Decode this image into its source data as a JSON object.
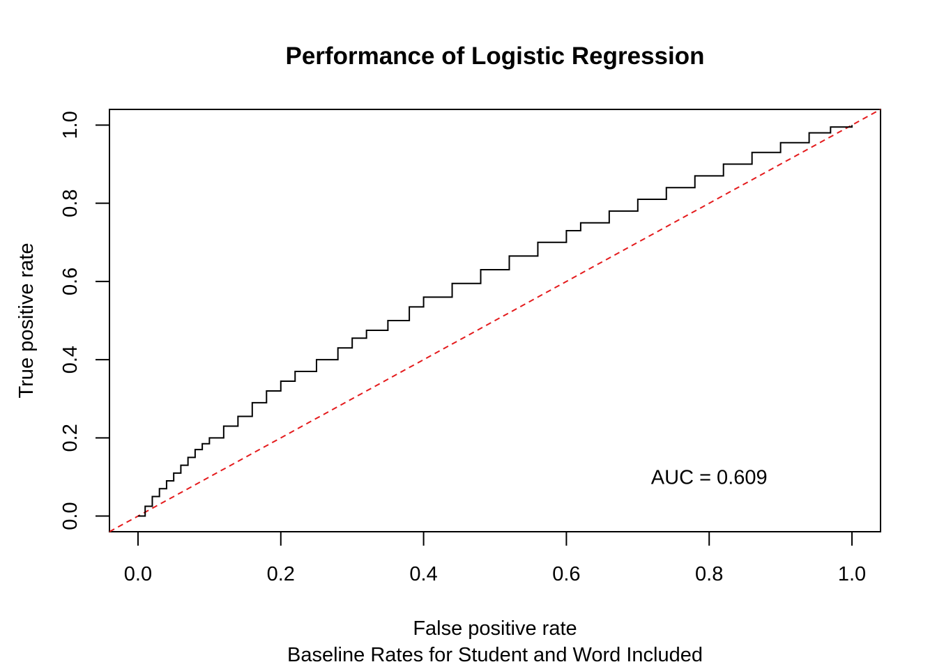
{
  "chart_data": {
    "type": "line",
    "title": "Performance of Logistic Regression",
    "xlabel": "False positive rate",
    "subtitle": "Baseline Rates for Student and Word Included",
    "ylabel": "True positive rate",
    "xlim": [
      -0.04,
      1.04
    ],
    "ylim": [
      -0.04,
      1.04
    ],
    "x_ticks": [
      "0.0",
      "0.2",
      "0.4",
      "0.6",
      "0.8",
      "1.0"
    ],
    "y_ticks": [
      "0.0",
      "0.2",
      "0.4",
      "0.6",
      "0.8",
      "1.0"
    ],
    "grid": false,
    "annotation": {
      "text": "AUC = 0.609",
      "x": 0.8,
      "y": 0.1
    },
    "series": [
      {
        "type": "step-line",
        "color": "#000000",
        "x": [
          0.0,
          0.01,
          0.02,
          0.03,
          0.04,
          0.05,
          0.06,
          0.07,
          0.08,
          0.09,
          0.1,
          0.12,
          0.14,
          0.16,
          0.18,
          0.2,
          0.22,
          0.25,
          0.28,
          0.3,
          0.32,
          0.35,
          0.38,
          0.4,
          0.44,
          0.48,
          0.52,
          0.56,
          0.6,
          0.62,
          0.66,
          0.7,
          0.74,
          0.78,
          0.82,
          0.86,
          0.9,
          0.94,
          0.97,
          1.0
        ],
        "y": [
          0.0,
          0.025,
          0.05,
          0.07,
          0.09,
          0.11,
          0.13,
          0.15,
          0.17,
          0.185,
          0.2,
          0.23,
          0.255,
          0.29,
          0.32,
          0.345,
          0.37,
          0.4,
          0.43,
          0.455,
          0.475,
          0.5,
          0.535,
          0.56,
          0.595,
          0.63,
          0.665,
          0.7,
          0.73,
          0.75,
          0.78,
          0.81,
          0.84,
          0.87,
          0.9,
          0.93,
          0.955,
          0.98,
          0.995,
          1.0
        ]
      },
      {
        "type": "reference-line",
        "color": "#e41a1c",
        "dash": "dashed",
        "x": [
          -0.04,
          1.04
        ],
        "y": [
          -0.04,
          1.04
        ]
      }
    ]
  }
}
